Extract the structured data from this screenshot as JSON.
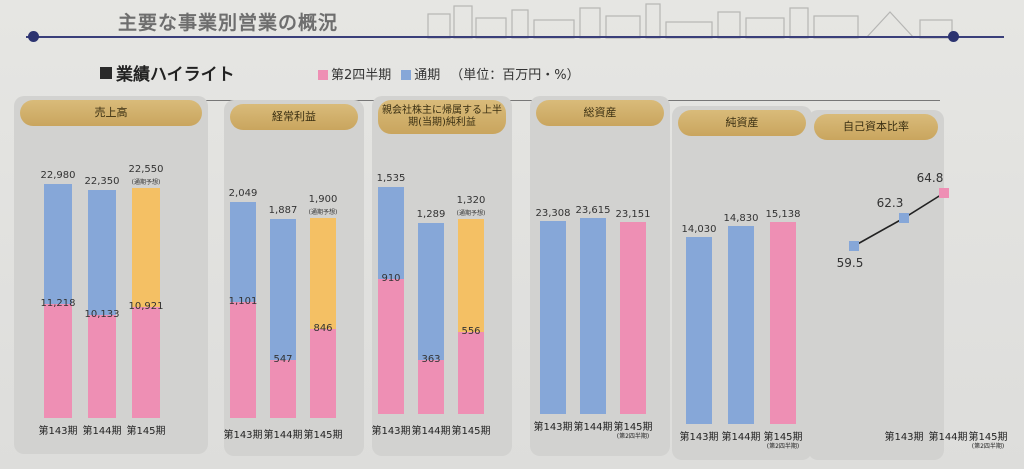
{
  "page_title": "主要な事業別営業の概況",
  "section_title": "業績ハイライト",
  "legend": {
    "q2_label": "第2四半期",
    "full_label": "通期",
    "unit_label": "（単位：百万円・%）",
    "q2_color": "#ee8fb4",
    "full_color": "#86a7d8",
    "forecast_color": "#f4c064"
  },
  "chart_data": [
    {
      "type": "bar",
      "title": "売上高",
      "categories": [
        "第143期",
        "第144期",
        "第145期"
      ],
      "series": [
        {
          "name": "第2四半期",
          "values": [
            11218,
            10133,
            10921
          ]
        },
        {
          "name": "通期",
          "values": [
            22980,
            22350,
            22550
          ]
        }
      ],
      "annotations": [
        "",
        "",
        "(通期予想)"
      ],
      "ylim": [
        0,
        25000
      ]
    },
    {
      "type": "bar",
      "title": "経常利益",
      "categories": [
        "第143期",
        "第144期",
        "第145期"
      ],
      "series": [
        {
          "name": "第2四半期",
          "values": [
            1101,
            547,
            846
          ]
        },
        {
          "name": "通期",
          "values": [
            2049,
            1887,
            1900
          ]
        }
      ],
      "annotations": [
        "",
        "",
        "(通期予想)"
      ],
      "ylim": [
        0,
        2200
      ]
    },
    {
      "type": "bar",
      "title": "親会社株主に帰属する上半期(当期)純利益",
      "categories": [
        "第143期",
        "第144期",
        "第145期"
      ],
      "series": [
        {
          "name": "第2四半期",
          "values": [
            910,
            363,
            556
          ]
        },
        {
          "name": "通期",
          "values": [
            1535,
            1289,
            1320
          ]
        }
      ],
      "annotations": [
        "",
        "",
        "(通期予想)"
      ],
      "ylim": [
        0,
        1650
      ]
    },
    {
      "type": "bar",
      "title": "総資産",
      "categories": [
        "第143期",
        "第144期",
        "第145期"
      ],
      "category_notes": [
        "",
        "",
        "(第2四半期)"
      ],
      "values": [
        23308,
        23615,
        23151
      ],
      "ylim": [
        0,
        25000
      ]
    },
    {
      "type": "bar",
      "title": "純資産",
      "categories": [
        "第143期",
        "第144期",
        "第145期"
      ],
      "category_notes": [
        "",
        "",
        "(第2四半期)"
      ],
      "values": [
        14030,
        14830,
        15138
      ],
      "ylim": [
        0,
        16500
      ]
    },
    {
      "type": "line",
      "title": "自己資本比率",
      "categories": [
        "第143期",
        "第144期",
        "第145期"
      ],
      "category_notes": [
        "",
        "",
        "(第2四半期)"
      ],
      "values": [
        59.5,
        62.3,
        64.8
      ],
      "ylim": [
        50,
        70
      ]
    }
  ]
}
